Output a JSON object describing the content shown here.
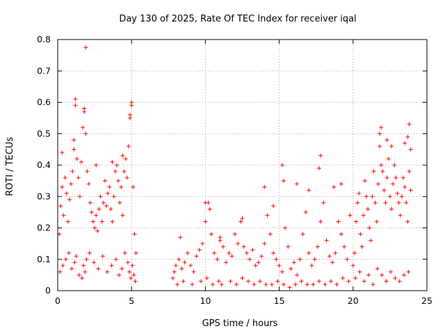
{
  "chart_data": {
    "type": "scatter",
    "title": "Day 130 of 2025, Rate Of TEC Index for receiver iqal",
    "xlabel": "GPS time / hours",
    "ylabel": "ROTI / TECUs",
    "xlim": [
      0,
      25
    ],
    "ylim": [
      0,
      0.8
    ],
    "xticks": [
      "0",
      "5",
      "10",
      "15",
      "20",
      "25"
    ],
    "yticks": [
      "0",
      "0.1",
      "0.2",
      "0.3",
      "0.4",
      "0.5",
      "0.6",
      "0.7",
      "0.8"
    ],
    "grid": true,
    "marker": "+",
    "color": "#ff0000",
    "series": [
      {
        "x": [
          0.1,
          0.2,
          0.3,
          0.4,
          0.5,
          0.6,
          0.7,
          0.8,
          0.9,
          1.0,
          1.1,
          1.2,
          1.3,
          1.4,
          1.5,
          1.6,
          1.7,
          1.8,
          1.9,
          2.0,
          2.1,
          2.2,
          2.3,
          2.4,
          2.5,
          2.6,
          2.7,
          2.8,
          2.9,
          3.0,
          3.1,
          3.2,
          3.3,
          3.4,
          3.5,
          3.6,
          3.7,
          3.8,
          3.9,
          4.0,
          4.1,
          4.2,
          4.3,
          4.4,
          4.5,
          4.6,
          4.7,
          4.8,
          4.9,
          5.0,
          5.1,
          5.2,
          5.3,
          0.15,
          0.35,
          0.55,
          0.75,
          0.95,
          1.15,
          1.25,
          1.45,
          1.65,
          1.75,
          1.85,
          1.95,
          2.15,
          2.45,
          2.75,
          3.05,
          3.35,
          3.65,
          3.95,
          4.15,
          4.35,
          4.55,
          4.75,
          4.85,
          4.95,
          5.05,
          5.15,
          5.25,
          1.9,
          1.2,
          1.8,
          5.0,
          4.9,
          1.1,
          0.3,
          2.6,
          3.7,
          4.4,
          7.8,
          7.9,
          8.0,
          8.2,
          8.4,
          8.6,
          8.8,
          9.0,
          9.2,
          9.4,
          9.6,
          9.8,
          10.0,
          10.2,
          10.4,
          10.6,
          10.8,
          11.0,
          11.2,
          11.4,
          11.6,
          11.8,
          12.0,
          12.2,
          12.4,
          12.6,
          12.8,
          13.0,
          13.2,
          13.4,
          13.6,
          13.8,
          14.0,
          14.2,
          14.4,
          14.6,
          14.8,
          15.0,
          15.2,
          15.4,
          15.6,
          15.8,
          16.0,
          16.2,
          16.4,
          16.6,
          16.8,
          17.0,
          17.2,
          17.4,
          17.6,
          17.8,
          18.0,
          18.2,
          18.4,
          18.6,
          18.8,
          19.0,
          19.2,
          19.4,
          19.6,
          19.8,
          8.1,
          8.5,
          9.1,
          9.7,
          10.1,
          10.5,
          10.9,
          11.1,
          11.7,
          12.1,
          12.5,
          12.9,
          13.3,
          13.7,
          14.1,
          14.5,
          14.9,
          15.3,
          15.7,
          16.1,
          16.5,
          16.9,
          17.3,
          17.7,
          18.1,
          18.5,
          18.9,
          19.3,
          19.7,
          8.3,
          10.0,
          10.3,
          11.0,
          12.5,
          14.0,
          14.6,
          15.2,
          15.3,
          16.2,
          17.0,
          17.8,
          17.7,
          18.7,
          19.2,
          20.0,
          20.1,
          20.2,
          20.3,
          20.4,
          20.5,
          20.6,
          20.7,
          20.8,
          20.9,
          21.0,
          21.1,
          21.2,
          21.3,
          21.4,
          21.5,
          21.6,
          21.7,
          21.8,
          21.9,
          22.0,
          22.1,
          22.2,
          22.3,
          22.4,
          22.5,
          22.6,
          22.7,
          22.8,
          22.9,
          23.0,
          23.1,
          23.2,
          23.3,
          23.4,
          23.5,
          23.6,
          23.7,
          23.8,
          23.9,
          20.15,
          20.45,
          20.75,
          21.05,
          21.35,
          21.65,
          21.95,
          22.25,
          22.55,
          22.85,
          23.15,
          23.45,
          23.75,
          21.8,
          21.9,
          22.3,
          22.6,
          23.5,
          23.7,
          23.8,
          23.9
        ],
        "y": [
          0.18,
          0.27,
          0.33,
          0.24,
          0.36,
          0.31,
          0.22,
          0.29,
          0.34,
          0.38,
          0.45,
          0.61,
          0.42,
          0.36,
          0.3,
          0.41,
          0.52,
          0.58,
          0.5,
          0.38,
          0.34,
          0.28,
          0.25,
          0.22,
          0.2,
          0.24,
          0.19,
          0.26,
          0.3,
          0.22,
          0.28,
          0.35,
          0.27,
          0.31,
          0.33,
          0.26,
          0.22,
          0.3,
          0.38,
          0.4,
          0.35,
          0.28,
          0.33,
          0.24,
          0.38,
          0.42,
          0.36,
          0.46,
          0.55,
          0.6,
          0.33,
          0.18,
          0.12,
          0.06,
          0.08,
          0.1,
          0.12,
          0.07,
          0.09,
          0.11,
          0.05,
          0.04,
          0.08,
          0.06,
          0.1,
          0.12,
          0.09,
          0.07,
          0.11,
          0.06,
          0.08,
          0.1,
          0.05,
          0.07,
          0.12,
          0.09,
          0.06,
          0.04,
          0.08,
          0.05,
          0.03,
          0.775,
          0.59,
          0.57,
          0.59,
          0.56,
          0.48,
          0.44,
          0.4,
          0.41,
          0.43,
          0.04,
          0.06,
          0.08,
          0.1,
          0.07,
          0.09,
          0.12,
          0.08,
          0.06,
          0.11,
          0.13,
          0.15,
          0.22,
          0.28,
          0.18,
          0.12,
          0.1,
          0.16,
          0.14,
          0.09,
          0.12,
          0.11,
          0.18,
          0.15,
          0.22,
          0.14,
          0.12,
          0.1,
          0.13,
          0.08,
          0.09,
          0.11,
          0.15,
          0.24,
          0.18,
          0.12,
          0.1,
          0.08,
          0.06,
          0.2,
          0.14,
          0.07,
          0.09,
          0.05,
          0.1,
          0.18,
          0.25,
          0.12,
          0.08,
          0.1,
          0.14,
          0.22,
          0.28,
          0.16,
          0.11,
          0.09,
          0.12,
          0.22,
          0.18,
          0.14,
          0.1,
          0.24,
          0.02,
          0.03,
          0.02,
          0.03,
          0.04,
          0.02,
          0.03,
          0.02,
          0.03,
          0.02,
          0.04,
          0.03,
          0.02,
          0.03,
          0.02,
          0.02,
          0.03,
          0.02,
          0.01,
          0.02,
          0.03,
          0.02,
          0.02,
          0.03,
          0.02,
          0.03,
          0.02,
          0.04,
          0.03,
          0.17,
          0.28,
          0.26,
          0.17,
          0.23,
          0.33,
          0.27,
          0.4,
          0.35,
          0.34,
          0.32,
          0.43,
          0.39,
          0.33,
          0.34,
          0.08,
          0.12,
          0.22,
          0.28,
          0.31,
          0.18,
          0.14,
          0.24,
          0.35,
          0.3,
          0.26,
          0.2,
          0.16,
          0.3,
          0.38,
          0.28,
          0.22,
          0.34,
          0.46,
          0.4,
          0.38,
          0.32,
          0.28,
          0.36,
          0.42,
          0.3,
          0.26,
          0.34,
          0.4,
          0.36,
          0.31,
          0.28,
          0.24,
          0.3,
          0.36,
          0.33,
          0.28,
          0.22,
          0.38,
          0.32,
          0.04,
          0.06,
          0.03,
          0.05,
          0.02,
          0.07,
          0.05,
          0.03,
          0.06,
          0.04,
          0.03,
          0.05,
          0.06,
          0.5,
          0.52,
          0.48,
          0.46,
          0.47,
          0.49,
          0.53,
          0.45
        ]
      }
    ]
  }
}
